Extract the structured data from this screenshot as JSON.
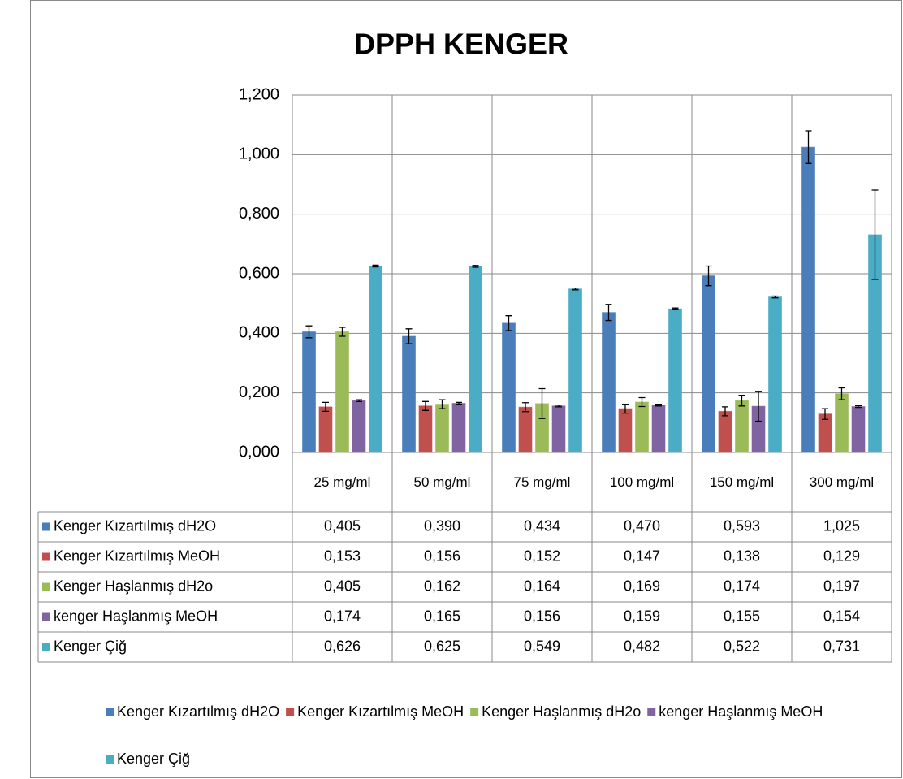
{
  "chart_data": {
    "type": "bar",
    "title": "DPPH KENGER",
    "categories": [
      "25 mg/ml",
      "50 mg/ml",
      "75 mg/ml",
      "100 mg/ml",
      "150 mg/ml",
      "300 mg/ml"
    ],
    "ylim": [
      0,
      1.2
    ],
    "yticks": [
      {
        "value": 0,
        "label": "0,000"
      },
      {
        "value": 0.2,
        "label": "0,200"
      },
      {
        "value": 0.4,
        "label": "0,400"
      },
      {
        "value": 0.6,
        "label": "0,600"
      },
      {
        "value": 0.8,
        "label": "0,800"
      },
      {
        "value": 1.0,
        "label": "1,000"
      },
      {
        "value": 1.2,
        "label": "1,200"
      }
    ],
    "grid": true,
    "legend": "bottom",
    "series": [
      {
        "name": "Kenger Kızartılmış dH2O",
        "color": "#4a7ebb",
        "values": [
          0.405,
          0.39,
          0.434,
          0.47,
          0.593,
          1.025
        ],
        "value_labels": [
          "0,405",
          "0,390",
          "0,434",
          "0,470",
          "0,593",
          "1,025"
        ],
        "errors": [
          0.02,
          0.025,
          0.025,
          0.027,
          0.033,
          0.055
        ]
      },
      {
        "name": "Kenger Kızartılmış MeOH",
        "color": "#c0504d",
        "values": [
          0.153,
          0.156,
          0.152,
          0.147,
          0.138,
          0.129
        ],
        "value_labels": [
          "0,153",
          "0,156",
          "0,152",
          "0,147",
          "0,138",
          "0,129"
        ],
        "errors": [
          0.015,
          0.015,
          0.015,
          0.015,
          0.015,
          0.018
        ]
      },
      {
        "name": "Kenger Haşlanmış dH2o",
        "color": "#9bbb59",
        "values": [
          0.405,
          0.162,
          0.164,
          0.169,
          0.174,
          0.197
        ],
        "value_labels": [
          "0,405",
          "0,162",
          "0,164",
          "0,169",
          "0,174",
          "0,197"
        ],
        "errors": [
          0.015,
          0.015,
          0.05,
          0.015,
          0.018,
          0.02
        ]
      },
      {
        "name": "kenger Haşlanmış MeOH",
        "color": "#8064a2",
        "values": [
          0.174,
          0.165,
          0.156,
          0.159,
          0.155,
          0.154
        ],
        "value_labels": [
          "0,174",
          "0,165",
          "0,156",
          "0,159",
          "0,155",
          "0,154"
        ],
        "errors": [
          0.003,
          0.003,
          0.003,
          0.003,
          0.05,
          0.003
        ]
      },
      {
        "name": "Kenger Çiğ",
        "color": "#4bacc6",
        "values": [
          0.626,
          0.625,
          0.549,
          0.482,
          0.522,
          0.731
        ],
        "value_labels": [
          "0,626",
          "0,625",
          "0,549",
          "0,482",
          "0,522",
          "0,731"
        ],
        "errors": [
          0.003,
          0.003,
          0.003,
          0.003,
          0.003,
          0.15
        ]
      }
    ]
  }
}
